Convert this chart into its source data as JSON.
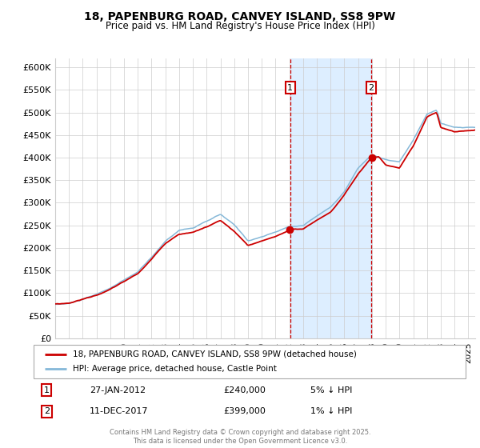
{
  "title": "18, PAPENBURG ROAD, CANVEY ISLAND, SS8 9PW",
  "subtitle": "Price paid vs. HM Land Registry's House Price Index (HPI)",
  "hpi_label": "HPI: Average price, detached house, Castle Point",
  "property_label": "18, PAPENBURG ROAD, CANVEY ISLAND, SS8 9PW (detached house)",
  "hpi_color": "#85b8d8",
  "property_color": "#cc0000",
  "highlight_bg": "#ddeeff",
  "sale1_date": "27-JAN-2012",
  "sale1_price": 240000,
  "sale1_label": "5% ↓ HPI",
  "sale1_year": 2012.07,
  "sale2_date": "11-DEC-2017",
  "sale2_price": 399000,
  "sale2_label": "1% ↓ HPI",
  "sale2_year": 2017.95,
  "ylim": [
    0,
    620000
  ],
  "yticks": [
    0,
    50000,
    100000,
    150000,
    200000,
    250000,
    300000,
    350000,
    400000,
    450000,
    500000,
    550000,
    600000
  ],
  "xstart": 1995.0,
  "xend": 2025.5,
  "footer": "Contains HM Land Registry data © Crown copyright and database right 2025.\nThis data is licensed under the Open Government Licence v3.0.",
  "annotation1_label": "1",
  "annotation2_label": "2",
  "background_color": "#ffffff",
  "grid_color": "#cccccc"
}
